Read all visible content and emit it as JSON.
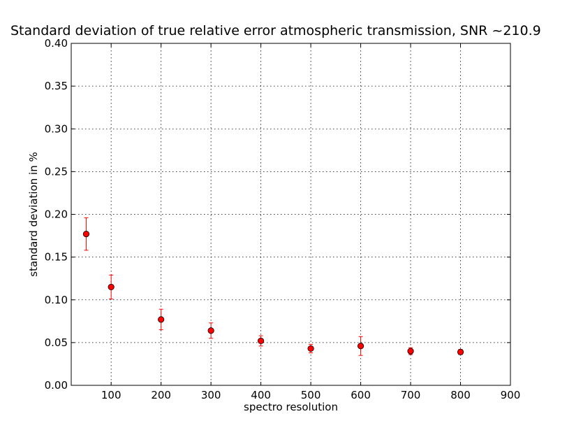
{
  "chart_data": {
    "type": "scatter",
    "title": "Standard deviation of true relative error atmospheric transmission, SNR ~210.9",
    "xlabel": "spectro resolution",
    "ylabel": "standard deviation in %",
    "xlim": [
      20,
      900
    ],
    "ylim": [
      0.0,
      0.4
    ],
    "xticks": [
      100,
      200,
      300,
      400,
      500,
      600,
      700,
      800,
      900
    ],
    "xtick_labels": [
      "100",
      "200",
      "300",
      "400",
      "500",
      "600",
      "700",
      "800",
      "900"
    ],
    "yticks": [
      0.0,
      0.05,
      0.1,
      0.15,
      0.2,
      0.25,
      0.3,
      0.35,
      0.4
    ],
    "ytick_labels": [
      "0.00",
      "0.05",
      "0.10",
      "0.15",
      "0.20",
      "0.25",
      "0.30",
      "0.35",
      "0.40"
    ],
    "grid": true,
    "marker_color": "#ff0000",
    "errorbar_color": "#ff0000",
    "series": [
      {
        "x": [
          50,
          100,
          200,
          300,
          400,
          500,
          600,
          700,
          800
        ],
        "y": [
          0.177,
          0.115,
          0.077,
          0.064,
          0.052,
          0.043,
          0.046,
          0.04,
          0.039
        ],
        "yerr": [
          0.019,
          0.014,
          0.012,
          0.009,
          0.006,
          0.005,
          0.011,
          0.004,
          0.003
        ]
      }
    ]
  }
}
